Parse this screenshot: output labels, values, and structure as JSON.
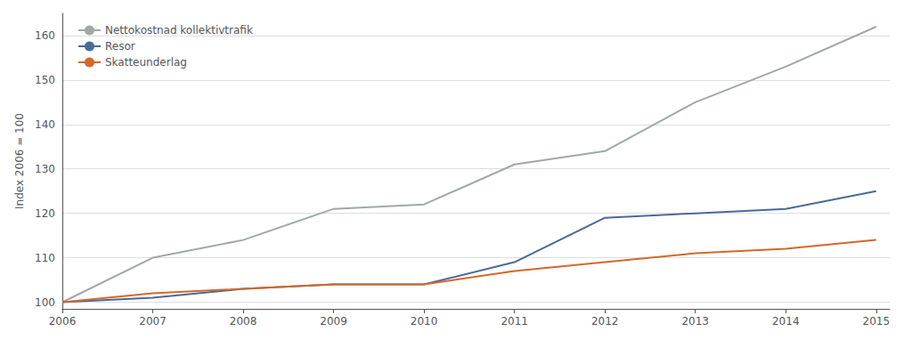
{
  "chart_data": {
    "type": "line",
    "ylabel": "Index 2006 = 100",
    "x": [
      2006,
      2007,
      2008,
      2009,
      2010,
      2011,
      2012,
      2013,
      2014,
      2015
    ],
    "series": [
      {
        "name": "Nettokostnad kollektivtrafik",
        "color": "#a0a8a8",
        "values": [
          100,
          110,
          114,
          121,
          122,
          131,
          134,
          145,
          153,
          162
        ]
      },
      {
        "name": "Resor",
        "color": "#4a6a9a",
        "values": [
          100,
          101,
          103,
          104,
          104,
          109,
          119,
          120,
          121,
          125
        ]
      },
      {
        "name": "Skatteunderlag",
        "color": "#d4682a",
        "values": [
          100,
          102,
          103,
          104,
          104,
          107,
          109,
          111,
          112,
          114
        ]
      }
    ],
    "xlim": [
      2006,
      2015.15
    ],
    "xticks": [
      2006,
      2007,
      2008,
      2009,
      2010,
      2011,
      2012,
      2013,
      2014,
      2015
    ],
    "ylim": [
      98.5,
      165
    ],
    "yticks": [
      100,
      110,
      120,
      130,
      140,
      150,
      160
    ],
    "grid": true,
    "legend": "upper left"
  }
}
